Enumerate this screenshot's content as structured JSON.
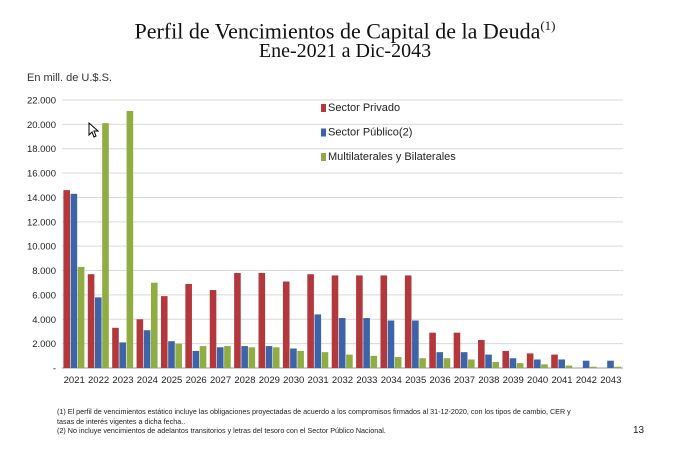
{
  "header": {
    "title": "Perfil de Vencimientos de Capital de la Deuda",
    "title_sup": "(1)",
    "subtitle": "Ene-2021 a Dic-2043",
    "unit": "En mill. de U.$.S."
  },
  "chart_data": {
    "type": "bar",
    "title": "Perfil de Vencimientos de Capital de la Deuda(1)",
    "subtitle": "Ene-2021 a Dic-2043",
    "ylabel": "En mill. de U.$.S.",
    "ylim": [
      0,
      22000
    ],
    "yticks": [
      "-",
      "2.000",
      "4.000",
      "6.000",
      "8.000",
      "10.000",
      "12.000",
      "14.000",
      "16.000",
      "18.000",
      "20.000",
      "22.000"
    ],
    "grid": true,
    "legend_position": "top-center",
    "categories": [
      "2021",
      "2022",
      "2023",
      "2024",
      "2025",
      "2026",
      "2027",
      "2028",
      "2029",
      "2030",
      "2031",
      "2032",
      "2033",
      "2034",
      "2035",
      "2036",
      "2037",
      "2038",
      "2039",
      "2040",
      "2041",
      "2042",
      "2043"
    ],
    "series": [
      {
        "name": "Sector Privado",
        "color": "#b3383c",
        "values": [
          14600,
          7700,
          3300,
          4000,
          5900,
          6900,
          6400,
          7800,
          7800,
          7100,
          7700,
          7600,
          7600,
          7600,
          7600,
          2900,
          2900,
          2300,
          1400,
          1200,
          1100,
          0,
          0
        ]
      },
      {
        "name": "Sector Público(2)",
        "color": "#3d64a8",
        "values": [
          14300,
          5800,
          2100,
          3100,
          2200,
          1400,
          1700,
          1800,
          1800,
          1600,
          4400,
          4100,
          4100,
          3900,
          3900,
          1300,
          1300,
          1100,
          800,
          700,
          700,
          600,
          600
        ]
      },
      {
        "name": "Multilaterales y Bilaterales",
        "color": "#8fad43",
        "values": [
          8300,
          20100,
          21100,
          7000,
          2000,
          1800,
          1800,
          1700,
          1700,
          1400,
          1300,
          1100,
          1000,
          900,
          800,
          800,
          700,
          500,
          400,
          300,
          200,
          100,
          100
        ]
      }
    ]
  },
  "footnotes": [
    "(1)  El perfil de vencimientos estático incluye las obligaciones proyectadas de acuerdo a los compromisos firmados al 31-12-2020, con los tipos de cambio, CER y",
    "      tasas de interés vigentes a dicha fecha..",
    "(2)  No incluye vencimientos de adelantos transitorios y letras del tesoro con el Sector Público Nacional."
  ],
  "page_number": "13"
}
